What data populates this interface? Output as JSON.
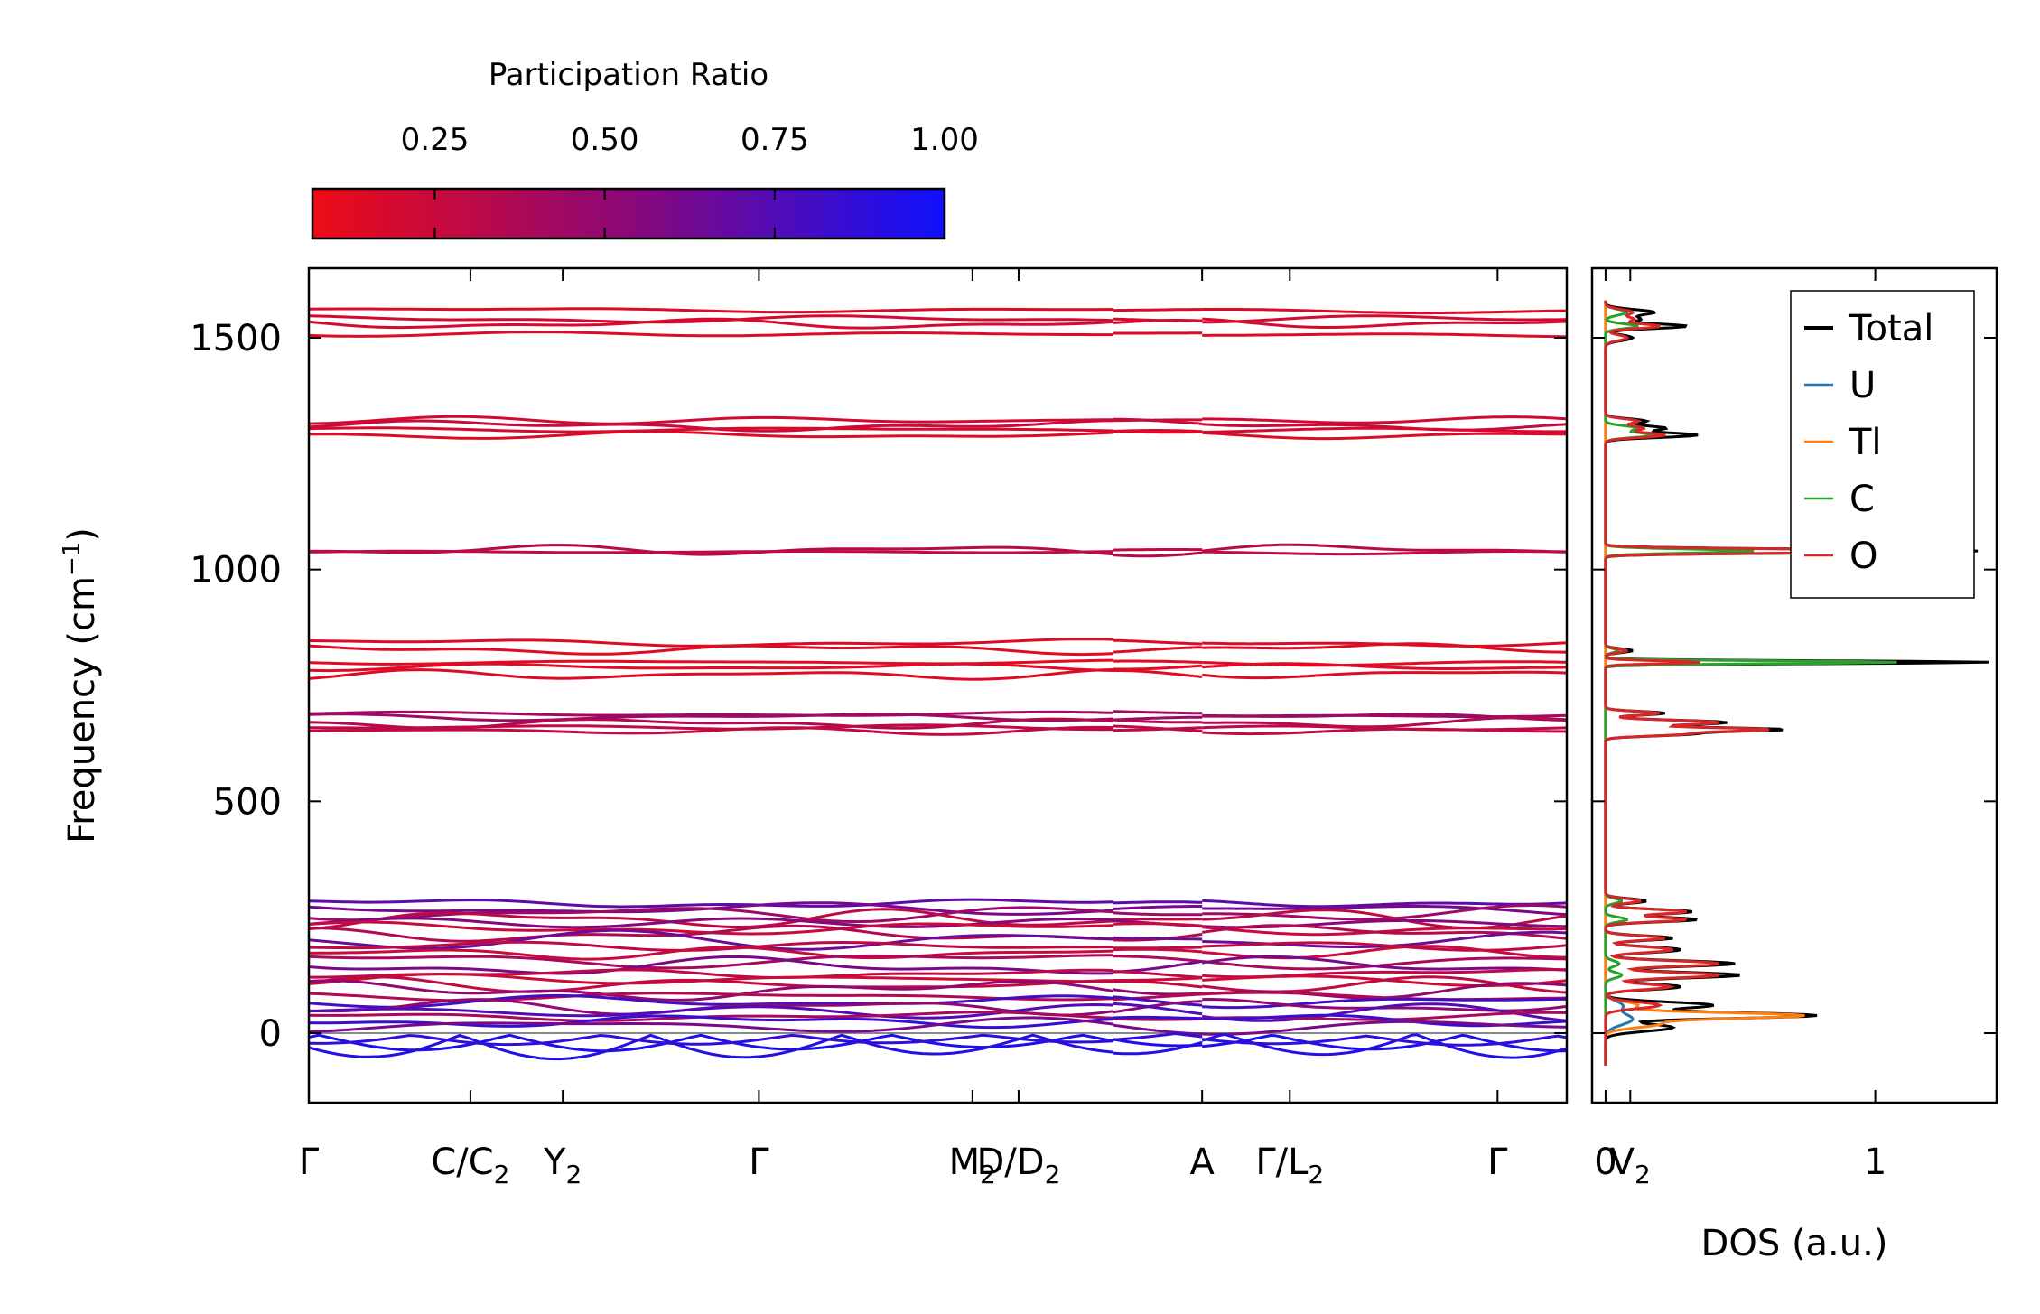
{
  "colorbar": {
    "title": "Participation Ratio",
    "ticks": [
      0.25,
      0.5,
      0.75,
      1.0
    ],
    "tick_labels": [
      "0.25",
      "0.50",
      "0.75",
      "1.00"
    ],
    "range": [
      0.07,
      1.0
    ],
    "color_low": "#ee0b16",
    "color_mid": "#8b0878",
    "color_high": "#0f10fc"
  },
  "chart_data": [
    {
      "type": "line",
      "title": "",
      "xlabel": "",
      "ylabel": "Frequency (cm⁻¹)",
      "ylabel_base": "Frequency (cm",
      "ylabel_sup": "−1",
      "ylabel_close": ")",
      "ylim": [
        -150,
        1650
      ],
      "yticks": [
        0,
        500,
        1000,
        1500
      ],
      "ytick_labels": [
        "0",
        "500",
        "1000",
        "1500"
      ],
      "xlim": [
        0,
        10.9
      ],
      "segment_breaks": [
        6.97,
        7.74
      ],
      "zero_line": 0,
      "kpoints": [
        {
          "pos": 0.0,
          "main": "Γ",
          "sub": "",
          "tick": true
        },
        {
          "pos": 1.4,
          "main": "C/C",
          "sub": "2",
          "tick": true
        },
        {
          "pos": 2.2,
          "main": "Y",
          "sub": "2",
          "tick": true
        },
        {
          "pos": 3.9,
          "main": "Γ",
          "sub": "",
          "tick": true
        },
        {
          "pos": 5.75,
          "main": "M",
          "sub": "2",
          "tick": true
        },
        {
          "pos": 6.15,
          "main": "D/D",
          "sub": "2",
          "tick": true
        },
        {
          "pos": 7.74,
          "main": "A",
          "sub": "",
          "tick": true
        },
        {
          "pos": 8.5,
          "main": "Γ/L",
          "sub": "2",
          "tick": true
        },
        {
          "pos": 10.3,
          "main": "Γ",
          "sub": "",
          "tick": true
        },
        {
          "pos": 11.45,
          "main": "V",
          "sub": "2",
          "tick": true
        }
      ],
      "bands": [
        {
          "mode": "opt",
          "mean": 1560,
          "pr": 0.16
        },
        {
          "mode": "opt",
          "mean": 1540,
          "pr": 0.2
        },
        {
          "mode": "opt",
          "mean": 1530,
          "pr": 0.18
        },
        {
          "mode": "opt",
          "mean": 1508,
          "pr": 0.15
        },
        {
          "mode": "opt",
          "mean": 1322,
          "pr": 0.2
        },
        {
          "mode": "opt",
          "mean": 1310,
          "pr": 0.25
        },
        {
          "mode": "opt",
          "mean": 1302,
          "pr": 0.18
        },
        {
          "mode": "opt",
          "mean": 1290,
          "pr": 0.16
        },
        {
          "mode": "opt",
          "mean": 1042,
          "pr": 0.33
        },
        {
          "mode": "opt",
          "mean": 1038,
          "pr": 0.28
        },
        {
          "mode": "opt",
          "mean": 842,
          "pr": 0.15
        },
        {
          "mode": "opt",
          "mean": 828,
          "pr": 0.14
        },
        {
          "mode": "opt",
          "mean": 800,
          "pr": 0.12
        },
        {
          "mode": "opt",
          "mean": 790,
          "pr": 0.13
        },
        {
          "mode": "opt",
          "mean": 773,
          "pr": 0.14
        },
        {
          "mode": "opt",
          "mean": 688,
          "pr": 0.42
        },
        {
          "mode": "opt",
          "mean": 682,
          "pr": 0.45
        },
        {
          "mode": "opt",
          "mean": 668,
          "pr": 0.35
        },
        {
          "mode": "opt",
          "mean": 660,
          "pr": 0.3
        },
        {
          "mode": "opt",
          "mean": 652,
          "pr": 0.28
        },
        {
          "mode": "low",
          "mean": 280,
          "pr": 0.7
        },
        {
          "mode": "low",
          "mean": 268,
          "pr": 0.6
        },
        {
          "mode": "low",
          "mean": 258,
          "pr": 0.45
        },
        {
          "mode": "low",
          "mean": 246,
          "pr": 0.3
        },
        {
          "mode": "low",
          "mean": 238,
          "pr": 0.55
        },
        {
          "mode": "low",
          "mean": 226,
          "pr": 0.25
        },
        {
          "mode": "low",
          "mean": 214,
          "pr": 0.35
        },
        {
          "mode": "low",
          "mean": 200,
          "pr": 0.65
        },
        {
          "mode": "low",
          "mean": 188,
          "pr": 0.3
        },
        {
          "mode": "low",
          "mean": 172,
          "pr": 0.25
        },
        {
          "mode": "low",
          "mean": 158,
          "pr": 0.4
        },
        {
          "mode": "low",
          "mean": 144,
          "pr": 0.6
        },
        {
          "mode": "low",
          "mean": 128,
          "pr": 0.3
        },
        {
          "mode": "low",
          "mean": 116,
          "pr": 0.22
        },
        {
          "mode": "low",
          "mean": 104,
          "pr": 0.28
        },
        {
          "mode": "low",
          "mean": 92,
          "pr": 0.5
        },
        {
          "mode": "low",
          "mean": 80,
          "pr": 0.35
        },
        {
          "mode": "low",
          "mean": 68,
          "pr": 0.8
        },
        {
          "mode": "low",
          "mean": 56,
          "pr": 0.5
        },
        {
          "mode": "low",
          "mean": 46,
          "pr": 0.75
        },
        {
          "mode": "low",
          "mean": 36,
          "pr": 0.4
        },
        {
          "mode": "low",
          "mean": 26,
          "pr": 0.85
        },
        {
          "mode": "low",
          "mean": 16,
          "pr": 0.6
        },
        {
          "mode": "acoustic",
          "mean": 0,
          "pr": 0.95
        },
        {
          "mode": "acoustic",
          "mean": 0,
          "pr": 0.92
        },
        {
          "mode": "acoustic",
          "mean": 0,
          "pr": 0.88
        }
      ]
    },
    {
      "type": "line",
      "title": "",
      "xlabel": "DOS (a.u.)",
      "ylabel": "",
      "xlim": [
        -0.05,
        1.45
      ],
      "xticks": [
        0,
        1
      ],
      "xtick_labels": [
        "0",
        "1"
      ],
      "ylim": [
        -150,
        1650
      ],
      "legend_position": "top-right",
      "series": [
        {
          "name": "Total",
          "color": "#000000",
          "peaks": [
            [
              1555,
              0.18,
              6
            ],
            [
              1540,
              0.12,
              5
            ],
            [
              1525,
              0.3,
              5
            ],
            [
              1500,
              0.1,
              6
            ],
            [
              1320,
              0.15,
              5
            ],
            [
              1305,
              0.22,
              5
            ],
            [
              1290,
              0.34,
              5
            ],
            [
              1040,
              1.38,
              4
            ],
            [
              825,
              0.1,
              4
            ],
            [
              800,
              1.42,
              3
            ],
            [
              690,
              0.22,
              4
            ],
            [
              670,
              0.45,
              5
            ],
            [
              655,
              0.65,
              4
            ],
            [
              645,
              0.3,
              4
            ],
            [
              285,
              0.15,
              5
            ],
            [
              262,
              0.32,
              5
            ],
            [
              245,
              0.34,
              5
            ],
            [
              205,
              0.25,
              5
            ],
            [
              180,
              0.28,
              6
            ],
            [
              150,
              0.48,
              6
            ],
            [
              125,
              0.5,
              6
            ],
            [
              100,
              0.28,
              6
            ],
            [
              60,
              0.4,
              7
            ],
            [
              38,
              0.78,
              6
            ],
            [
              12,
              0.25,
              8
            ]
          ]
        },
        {
          "name": "U",
          "color": "#1f77b4",
          "peaks": [
            [
              30,
              0.1,
              12
            ],
            [
              60,
              0.06,
              10
            ]
          ]
        },
        {
          "name": "Tl",
          "color": "#ff7f0e",
          "peaks": [
            [
              38,
              0.72,
              6
            ],
            [
              20,
              0.2,
              8
            ],
            [
              60,
              0.12,
              8
            ]
          ]
        },
        {
          "name": "C",
          "color": "#2ca02c",
          "peaks": [
            [
              1555,
              0.08,
              6
            ],
            [
              1525,
              0.12,
              5
            ],
            [
              1305,
              0.12,
              5
            ],
            [
              1290,
              0.18,
              5
            ],
            [
              1040,
              0.55,
              4
            ],
            [
              800,
              1.08,
              3
            ],
            [
              825,
              0.05,
              4
            ],
            [
              285,
              0.06,
              5
            ],
            [
              245,
              0.08,
              5
            ],
            [
              150,
              0.05,
              6
            ],
            [
              125,
              0.06,
              6
            ]
          ]
        },
        {
          "name": "O",
          "color": "#d62728",
          "peaks": [
            [
              1555,
              0.1,
              6
            ],
            [
              1540,
              0.1,
              5
            ],
            [
              1525,
              0.2,
              5
            ],
            [
              1500,
              0.08,
              6
            ],
            [
              1320,
              0.12,
              5
            ],
            [
              1305,
              0.14,
              5
            ],
            [
              1290,
              0.22,
              5
            ],
            [
              1040,
              1.3,
              4
            ],
            [
              825,
              0.08,
              4
            ],
            [
              800,
              0.35,
              3
            ],
            [
              690,
              0.2,
              4
            ],
            [
              670,
              0.42,
              5
            ],
            [
              655,
              0.6,
              4
            ],
            [
              645,
              0.28,
              4
            ],
            [
              285,
              0.13,
              5
            ],
            [
              262,
              0.3,
              5
            ],
            [
              245,
              0.3,
              5
            ],
            [
              205,
              0.22,
              5
            ],
            [
              180,
              0.25,
              6
            ],
            [
              150,
              0.42,
              6
            ],
            [
              125,
              0.42,
              6
            ],
            [
              100,
              0.24,
              6
            ],
            [
              60,
              0.2,
              7
            ]
          ]
        }
      ]
    }
  ]
}
